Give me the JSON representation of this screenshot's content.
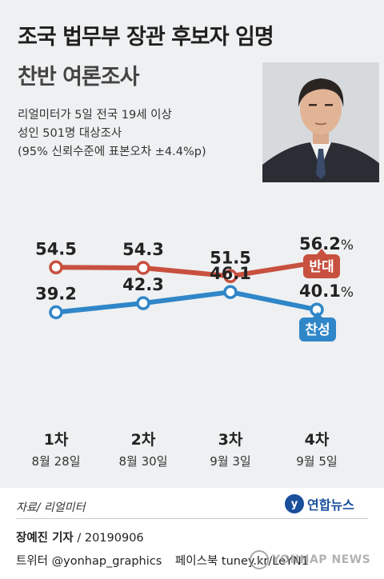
{
  "header": {
    "title": "조국 법무부 장관 후보자 임명",
    "subtitle": "찬반 여론조사",
    "method_lines": [
      "리얼미터가 5일 전국 19세 이상",
      "성인 501명 대상조사",
      "(95% 신뢰수준에 표본오차 ±4.4%p)"
    ]
  },
  "colors": {
    "oppose": "#c8503f",
    "support": "#2f86c8",
    "background": "#eef0f1"
  },
  "chart_data": {
    "type": "line",
    "categories": [
      {
        "round": "1차",
        "date": "8월 28일"
      },
      {
        "round": "2차",
        "date": "8월 30일"
      },
      {
        "round": "3차",
        "date": "9월 3일"
      },
      {
        "round": "4차",
        "date": "9월 5일"
      }
    ],
    "series": [
      {
        "name": "반대",
        "values": [
          54.5,
          54.3,
          51.5,
          56.2
        ],
        "labels": [
          "54.5",
          "54.3",
          "51.5",
          "56.2%"
        ]
      },
      {
        "name": "찬성",
        "values": [
          39.2,
          42.3,
          46.1,
          40.1
        ],
        "labels": [
          "39.2",
          "42.3",
          "46.1",
          "40.1%"
        ]
      }
    ],
    "grid": false
  },
  "footer": {
    "source": "자료/ 리얼미터",
    "logo": "연합뉴스",
    "reporter": "장예진 기자",
    "date": "/ 20190906",
    "twitter": "트위터 @yonhap_graphics",
    "facebook": "페이스북 tuney.kr/LeYN1",
    "watermark": "YONHAP NEWS"
  }
}
